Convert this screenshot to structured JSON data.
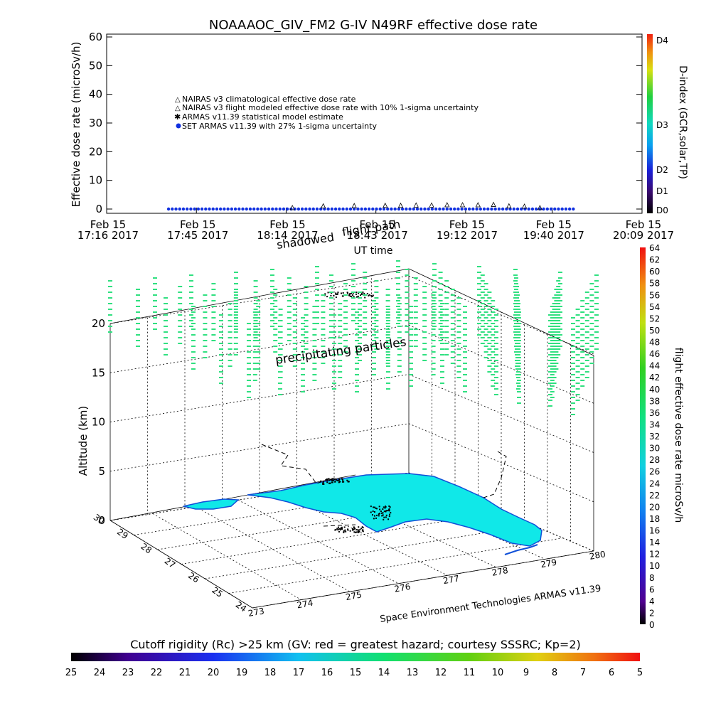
{
  "top_chart": {
    "title": "NOAAAOC_GIV_FM2 G-IV    N49RF  effective dose rate",
    "ylabel": "Effective dose rate  (microSv/h)",
    "xlabel": "UT time",
    "legend": [
      {
        "marker": "triangle",
        "color": "#d04040",
        "label": "NAIRAS v3 climatological effective dose rate"
      },
      {
        "marker": "triangle",
        "color": "#000000",
        "label": "NAIRAS v3 flight modeled effective dose rate with 10% 1-sigma uncertainty"
      },
      {
        "marker": "star",
        "color": "#30d060",
        "label": "ARMAS v11.39 statistical model estimate"
      },
      {
        "marker": "dot",
        "color": "#1030e0",
        "label": "SET ARMAS v11.39 with 27% 1-sigma uncertainty"
      }
    ],
    "dindex_label": "D-index (GCR,solar,TP)",
    "dindex_ticks": [
      "D0",
      "D1",
      "D2",
      "D3",
      "D4"
    ],
    "annotation_flight_path": "flight path",
    "annotation_shadowed": "shadowed"
  },
  "chart_data": [
    {
      "type": "scatter",
      "title": "NOAAAOC_GIV_FM2 G-IV    N49RF  effective dose rate",
      "xlabel": "UT time",
      "ylabel": "Effective dose rate  (microSv/h)",
      "ylim": [
        0,
        60
      ],
      "yticks": [
        0,
        10,
        20,
        30,
        40,
        50,
        60
      ],
      "xlim_minutes": [
        0,
        173
      ],
      "xtick_minutes": [
        0,
        29,
        58,
        87,
        116,
        144,
        173
      ],
      "xtick_labels": [
        [
          "Feb 15",
          "17:16 2017"
        ],
        [
          "Feb 15",
          "17:45 2017"
        ],
        [
          "Feb 15",
          "18:14 2017"
        ],
        [
          "Feb 15",
          "18:43 2017"
        ],
        [
          "Feb 15",
          "19:12 2017"
        ],
        [
          "Feb 15",
          "19:40 2017"
        ],
        [
          "Feb 15",
          "20:09 2017"
        ]
      ],
      "series": [
        {
          "name": "NAIRAS v3 flight modeled effective dose rate with 10% 1-sigma uncertainty",
          "marker": "triangle",
          "x_minutes": [
            10,
            20,
            30,
            40,
            50,
            60,
            70,
            80,
            90,
            95,
            100,
            105,
            110,
            115,
            120,
            125,
            130,
            135,
            140,
            150,
            160,
            170
          ],
          "values": [
            0,
            0,
            0,
            0,
            0,
            0,
            0.6,
            0.7,
            0.8,
            0.8,
            0.9,
            0.9,
            1.0,
            1.0,
            1.0,
            1.1,
            0.6,
            0.5,
            0,
            0,
            0,
            0
          ],
          "x_minutes_start": 52,
          "x_minutes_end": 141
        },
        {
          "name": "SET ARMAS v11.39 with 27% 1-sigma uncertainty",
          "marker": "dot",
          "x_start_minutes": 20,
          "x_end_minutes": 151,
          "values_constant": 0
        }
      ],
      "dindex": {
        "label": "D-index (GCR,solar,TP)",
        "ticks": [
          "D0",
          "D1",
          "D2",
          "D3",
          "D4"
        ]
      }
    },
    {
      "type": "scatter",
      "subtype": "3d-perspective",
      "zlabel": "Altitude (km)",
      "zticks": [
        0,
        5,
        10,
        15,
        20
      ],
      "lat_ticks": [
        "24",
        "25",
        "26",
        "27",
        "28",
        "29",
        "30"
      ],
      "lon_ticks": [
        "273",
        "274",
        "275",
        "276",
        "277",
        "278",
        "279",
        "280"
      ],
      "annotations": [
        "precipitating particles",
        "shadowed flight path"
      ],
      "credit": "Space Environment Technologies ARMAS v11.39",
      "colorbar_right": {
        "label": "flight effective dose rate microSv/h",
        "min": 0,
        "max": 64,
        "ticks": [
          "0",
          "2",
          "4",
          "6",
          "8",
          "10",
          "12",
          "14",
          "16",
          "18",
          "20",
          "22",
          "24",
          "26",
          "28",
          "30",
          "32",
          "34",
          "36",
          "38",
          "40",
          "42",
          "44",
          "46",
          "48",
          "50",
          "52",
          "54",
          "56",
          "58",
          "60",
          "62",
          "64"
        ]
      },
      "colorbar_bottom": {
        "label": "Cutoff rigidity (Rc) >25 km (GV: red = greatest hazard; courtesy SSSRC; Kp=2)",
        "ticks": [
          "25",
          "24",
          "23",
          "22",
          "21",
          "20",
          "19",
          "18",
          "17",
          "16",
          "15",
          "14",
          "13",
          "12",
          "11",
          "10",
          "9",
          "8",
          "7",
          "6",
          "5"
        ]
      },
      "dose_markers": {
        "color": "#30e080",
        "typical_value_microSv_h": 28
      }
    }
  ],
  "colors": {
    "land": "#10e8e8",
    "coast": "#1050d8",
    "dose_marker": "#30e080"
  }
}
